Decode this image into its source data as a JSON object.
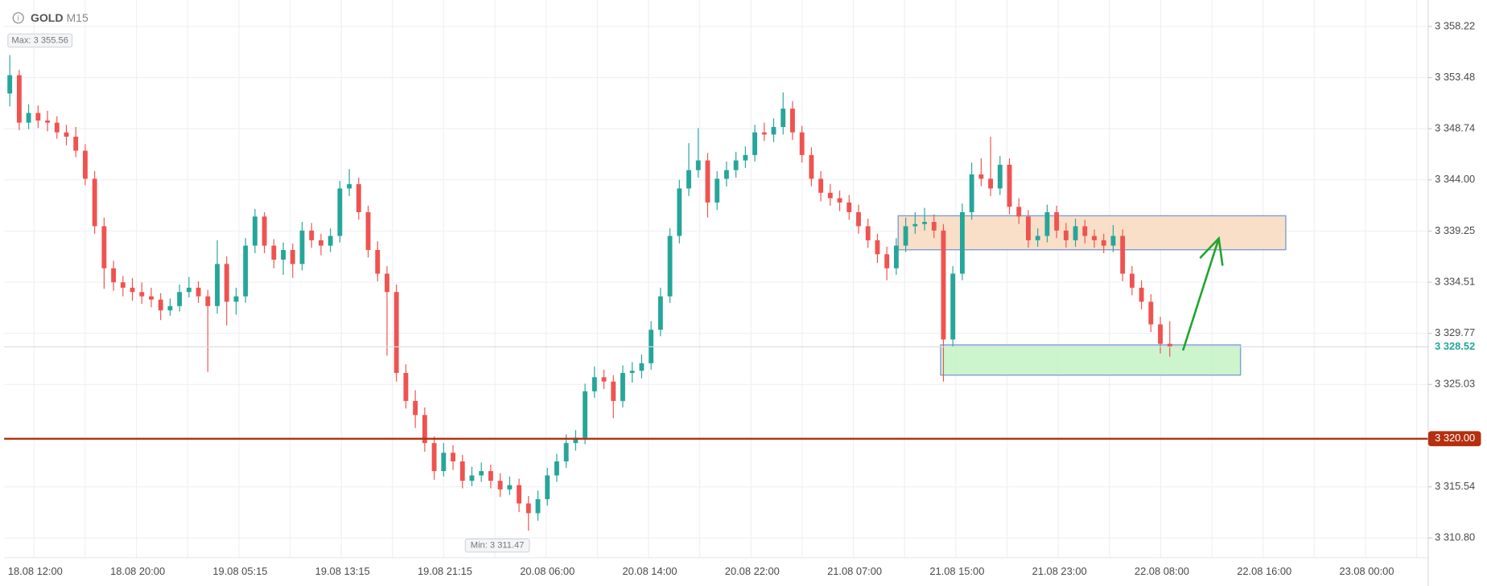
{
  "chart_data": {
    "type": "candlestick",
    "symbol": "GOLD",
    "timeframe": "M15",
    "up_color": "#26a69a",
    "down_color": "#ef5350",
    "grid": true,
    "ylim": [
      3308.97,
      3360.67
    ],
    "yticks": [
      {
        "value": 3358.22,
        "label": "3 358.22"
      },
      {
        "value": 3353.48,
        "label": "3 353.48"
      },
      {
        "value": 3348.74,
        "label": "3 348.74"
      },
      {
        "value": 3344.0,
        "label": "3 344.00"
      },
      {
        "value": 3339.25,
        "label": "3 339.25"
      },
      {
        "value": 3334.51,
        "label": "3 334.51"
      },
      {
        "value": 3329.77,
        "label": "3 329.77"
      },
      {
        "value": 3325.03,
        "label": "3 325.03"
      },
      {
        "value": 3315.54,
        "label": "3 315.54"
      },
      {
        "value": 3310.8,
        "label": "3 310.80"
      }
    ],
    "x_labels": [
      "18.08 12:00",
      "18.08 20:00",
      "19.08 05:15",
      "19.08 13:15",
      "19.08 21:15",
      "20.08 06:00",
      "20.08 14:00",
      "20.08 22:00",
      "21.08 07:00",
      "21.08 15:00",
      "21.08 23:00",
      "22.08 08:00",
      "22.08 16:00",
      "23.08 00:00"
    ],
    "max_label": {
      "value": 3355.56,
      "label": "Max: 3 355.56"
    },
    "min_label": {
      "value": 3311.47,
      "label": "Min: 3 311.47"
    },
    "last_price": {
      "value": 3328.52,
      "label": "3 328.52",
      "color": "#26a69a"
    },
    "level": {
      "value": 3320.0,
      "label": "3 320.00",
      "color": "#b5300f"
    },
    "zones": [
      {
        "top": 3340.67,
        "bottom": 3337.52,
        "fill": "#f8dcc2"
      },
      {
        "top": 3328.7,
        "bottom": 3325.9,
        "fill": "#c8f4c8"
      }
    ],
    "candles": [
      [
        3352.0,
        3355.56,
        3350.8,
        3353.7
      ],
      [
        3353.7,
        3354.2,
        3348.6,
        3349.3
      ],
      [
        3349.3,
        3351.0,
        3348.7,
        3350.2
      ],
      [
        3350.2,
        3350.9,
        3348.8,
        3349.5
      ],
      [
        3349.5,
        3350.4,
        3348.5,
        3349.3
      ],
      [
        3349.3,
        3349.9,
        3347.8,
        3348.4
      ],
      [
        3348.4,
        3349.1,
        3347.2,
        3348.0
      ],
      [
        3348.0,
        3348.9,
        3346.1,
        3346.7
      ],
      [
        3346.7,
        3347.3,
        3343.5,
        3344.1
      ],
      [
        3344.1,
        3344.8,
        3339.0,
        3339.7
      ],
      [
        3339.7,
        3340.5,
        3333.9,
        3335.8
      ],
      [
        3335.8,
        3336.5,
        3333.7,
        3334.5
      ],
      [
        3334.5,
        3335.1,
        3333.2,
        3334.0
      ],
      [
        3334.0,
        3334.9,
        3332.8,
        3333.6
      ],
      [
        3333.6,
        3334.5,
        3332.5,
        3333.2
      ],
      [
        3333.2,
        3334.0,
        3332.2,
        3332.9
      ],
      [
        3332.9,
        3333.5,
        3331.0,
        3331.9
      ],
      [
        3331.9,
        3333.0,
        3331.4,
        3332.3
      ],
      [
        3332.3,
        3334.3,
        3331.8,
        3333.6
      ],
      [
        3333.6,
        3335.0,
        3333.1,
        3334.0
      ],
      [
        3334.0,
        3334.6,
        3332.6,
        3333.2
      ],
      [
        3333.2,
        3333.8,
        3326.2,
        3332.3
      ],
      [
        3332.3,
        3338.4,
        3331.6,
        3336.2
      ],
      [
        3336.2,
        3336.9,
        3330.5,
        3332.7
      ],
      [
        3332.7,
        3334.0,
        3331.5,
        3333.2
      ],
      [
        3333.2,
        3338.6,
        3332.6,
        3337.9
      ],
      [
        3337.9,
        3341.3,
        3337.2,
        3340.6
      ],
      [
        3340.6,
        3341.0,
        3337.2,
        3337.9
      ],
      [
        3337.9,
        3338.5,
        3335.8,
        3336.6
      ],
      [
        3336.6,
        3338.2,
        3335.2,
        3337.5
      ],
      [
        3337.5,
        3338.1,
        3334.9,
        3336.2
      ],
      [
        3336.2,
        3340.1,
        3335.6,
        3339.3
      ],
      [
        3339.3,
        3340.0,
        3337.7,
        3338.4
      ],
      [
        3338.4,
        3339.0,
        3337.0,
        3337.9
      ],
      [
        3337.9,
        3339.5,
        3337.3,
        3338.8
      ],
      [
        3338.8,
        3343.9,
        3338.2,
        3343.2
      ],
      [
        3343.2,
        3345.0,
        3342.5,
        3343.6
      ],
      [
        3343.6,
        3344.2,
        3340.3,
        3341.0
      ],
      [
        3341.0,
        3341.6,
        3336.8,
        3337.5
      ],
      [
        3337.5,
        3338.3,
        3334.6,
        3335.3
      ],
      [
        3335.3,
        3336.0,
        3327.7,
        3333.6
      ],
      [
        3333.6,
        3334.3,
        3325.3,
        3326.1
      ],
      [
        3326.1,
        3326.9,
        3322.8,
        3323.5
      ],
      [
        3323.5,
        3324.5,
        3321.0,
        3322.2
      ],
      [
        3322.2,
        3322.9,
        3318.8,
        3319.6
      ],
      [
        3319.6,
        3320.2,
        3316.2,
        3317.0
      ],
      [
        3317.0,
        3319.6,
        3316.5,
        3318.7
      ],
      [
        3318.7,
        3319.4,
        3317.1,
        3317.9
      ],
      [
        3317.9,
        3318.5,
        3315.4,
        3316.1
      ],
      [
        3316.1,
        3317.4,
        3315.6,
        3316.6
      ],
      [
        3316.6,
        3317.8,
        3316.0,
        3317.0
      ],
      [
        3317.0,
        3317.6,
        3315.4,
        3316.1
      ],
      [
        3316.1,
        3316.8,
        3314.6,
        3315.3
      ],
      [
        3315.3,
        3316.5,
        3314.8,
        3315.7
      ],
      [
        3315.7,
        3316.3,
        3313.2,
        3314.0
      ],
      [
        3314.0,
        3314.7,
        3311.47,
        3313.1
      ],
      [
        3313.1,
        3315.2,
        3312.4,
        3314.4
      ],
      [
        3314.4,
        3317.3,
        3313.8,
        3316.6
      ],
      [
        3316.6,
        3318.6,
        3316.0,
        3317.9
      ],
      [
        3317.9,
        3320.4,
        3317.3,
        3319.6
      ],
      [
        3319.6,
        3320.8,
        3318.9,
        3320.1
      ],
      [
        3320.1,
        3325.1,
        3319.5,
        3324.4
      ],
      [
        3324.4,
        3326.7,
        3323.8,
        3325.7
      ],
      [
        3325.7,
        3326.4,
        3324.6,
        3325.3
      ],
      [
        3325.3,
        3325.9,
        3321.9,
        3323.5
      ],
      [
        3323.5,
        3326.8,
        3322.9,
        3326.1
      ],
      [
        3326.1,
        3327.1,
        3325.2,
        3326.3
      ],
      [
        3326.3,
        3327.8,
        3325.6,
        3327.0
      ],
      [
        3327.0,
        3330.9,
        3326.4,
        3330.1
      ],
      [
        3330.1,
        3334.0,
        3329.5,
        3333.2
      ],
      [
        3333.2,
        3339.5,
        3332.6,
        3338.8
      ],
      [
        3338.8,
        3344.0,
        3338.1,
        3343.2
      ],
      [
        3343.2,
        3347.4,
        3342.5,
        3344.9
      ],
      [
        3344.9,
        3348.8,
        3344.2,
        3345.8
      ],
      [
        3345.8,
        3346.5,
        3340.5,
        3341.9
      ],
      [
        3341.9,
        3344.8,
        3341.2,
        3344.1
      ],
      [
        3344.1,
        3345.7,
        3343.4,
        3344.9
      ],
      [
        3344.9,
        3346.6,
        3344.2,
        3345.8
      ],
      [
        3345.8,
        3347.1,
        3345.1,
        3346.3
      ],
      [
        3346.3,
        3349.1,
        3345.7,
        3348.4
      ],
      [
        3348.4,
        3349.3,
        3347.6,
        3348.2
      ],
      [
        3348.2,
        3349.7,
        3347.5,
        3348.9
      ],
      [
        3348.9,
        3352.1,
        3348.2,
        3350.6
      ],
      [
        3350.6,
        3351.3,
        3347.7,
        3348.4
      ],
      [
        3348.4,
        3349.0,
        3345.6,
        3346.3
      ],
      [
        3346.3,
        3347.0,
        3343.4,
        3344.1
      ],
      [
        3344.1,
        3344.8,
        3342.0,
        3342.8
      ],
      [
        3342.8,
        3343.6,
        3341.6,
        3342.3
      ],
      [
        3342.3,
        3343.0,
        3341.1,
        3341.9
      ],
      [
        3341.9,
        3342.6,
        3340.3,
        3341.0
      ],
      [
        3341.0,
        3341.7,
        3339.0,
        3339.7
      ],
      [
        3339.7,
        3340.4,
        3337.7,
        3338.4
      ],
      [
        3338.4,
        3339.0,
        3336.3,
        3337.1
      ],
      [
        3337.1,
        3337.8,
        3334.7,
        3335.8
      ],
      [
        3335.8,
        3338.6,
        3335.2,
        3337.9
      ],
      [
        3337.9,
        3340.5,
        3337.3,
        3339.7
      ],
      [
        3339.7,
        3341.0,
        3339.0,
        3339.9
      ],
      [
        3339.9,
        3341.4,
        3339.3,
        3340.1
      ],
      [
        3340.1,
        3340.8,
        3338.6,
        3339.3
      ],
      [
        3339.3,
        3339.9,
        3325.3,
        3329.2
      ],
      [
        3329.2,
        3336.0,
        3328.5,
        3335.3
      ],
      [
        3335.3,
        3341.8,
        3334.7,
        3341.0
      ],
      [
        3341.0,
        3345.6,
        3340.3,
        3344.5
      ],
      [
        3344.5,
        3346.0,
        3343.4,
        3344.1
      ],
      [
        3344.1,
        3348.0,
        3342.5,
        3343.2
      ],
      [
        3343.2,
        3346.2,
        3342.6,
        3345.4
      ],
      [
        3345.4,
        3346.0,
        3340.8,
        3341.5
      ],
      [
        3341.5,
        3342.3,
        3339.9,
        3340.6
      ],
      [
        3340.6,
        3341.2,
        3337.7,
        3338.4
      ],
      [
        3338.4,
        3339.5,
        3337.8,
        3338.8
      ],
      [
        3338.8,
        3341.7,
        3338.2,
        3341.0
      ],
      [
        3341.0,
        3341.6,
        3338.6,
        3339.3
      ],
      [
        3339.3,
        3340.0,
        3337.7,
        3338.4
      ],
      [
        3338.4,
        3340.4,
        3337.8,
        3339.7
      ],
      [
        3339.7,
        3340.3,
        3338.1,
        3338.8
      ],
      [
        3338.8,
        3339.4,
        3337.7,
        3338.4
      ],
      [
        3338.4,
        3339.0,
        3337.2,
        3337.9
      ],
      [
        3337.9,
        3339.8,
        3337.3,
        3338.8
      ],
      [
        3338.8,
        3339.4,
        3334.6,
        3335.3
      ],
      [
        3335.3,
        3336.0,
        3333.3,
        3334.0
      ],
      [
        3334.0,
        3334.7,
        3332.0,
        3332.7
      ],
      [
        3332.7,
        3333.4,
        3329.9,
        3330.6
      ],
      [
        3330.6,
        3331.3,
        3327.9,
        3328.8
      ],
      [
        3328.8,
        3330.9,
        3327.6,
        3328.52
      ]
    ]
  }
}
